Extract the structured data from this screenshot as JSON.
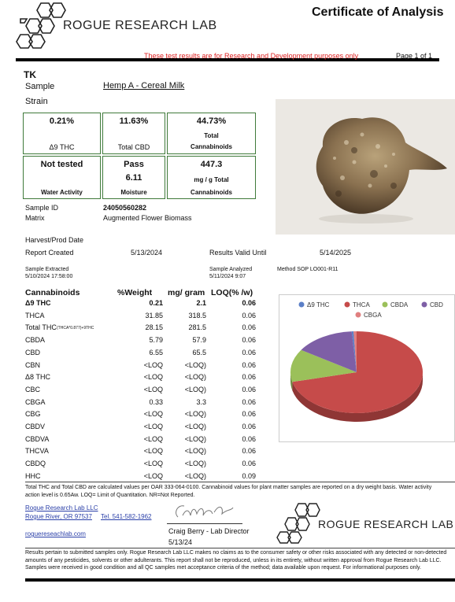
{
  "header": {
    "lab_name": "ROGUE RESEARCH LAB",
    "doc_title": "Certificate of Analysis",
    "disclaimer": "These test results are for Research and Development purposes only",
    "page": "Page 1 of 1"
  },
  "client": "TK",
  "sample": {
    "label": "Sample",
    "value": "Hemp A - Cereal Milk"
  },
  "strain": {
    "label": "Strain"
  },
  "summary_boxes": [
    {
      "value": "0.21%",
      "label": "Δ9 THC"
    },
    {
      "value": "11.63%",
      "label": "Total CBD"
    },
    {
      "value": "44.73%",
      "label_line1": "Total",
      "label_line2": "Cannabinoids"
    },
    {
      "value": "Not tested",
      "label": "Water Activity"
    },
    {
      "value": "Pass",
      "value2": "6.11",
      "label": "Moisture"
    },
    {
      "value": "447.3",
      "label_line1": "mg / g Total",
      "label_line2": "Cannabinoids"
    }
  ],
  "info": {
    "sample_id_label": "Sample ID",
    "sample_id": "24050560282",
    "matrix_label": "Matrix",
    "matrix": "Augmented Flower Biomass",
    "harvest_label": "Harvest/Prod Date",
    "report_created_label": "Report Created",
    "report_created": "5/13/2024",
    "results_valid_label": "Results Valid Until",
    "results_valid": "5/14/2025",
    "extracted_label": "Sample Extracted",
    "extracted": "5/10/2024 17:58:00",
    "analyzed_label": "Sample Analyzed",
    "analyzed": "5/11/2024 9:07",
    "method": "Method SOP LO001-R11"
  },
  "table": {
    "headers": [
      "Cannabinoids",
      "%Weight",
      "mg/ gram",
      "LOQ(% /w)"
    ],
    "rows": [
      {
        "name": "Δ9 THC",
        "weight": "0.21",
        "mg": "2.1",
        "loq": "0.06",
        "bold": true
      },
      {
        "name": "THCA",
        "weight": "31.85",
        "mg": "318.5",
        "loq": "0.06"
      },
      {
        "name": "Total THC",
        "note": "(THCA*0.877)+9THC",
        "weight": "28.15",
        "mg": "281.5",
        "loq": "0.06"
      },
      {
        "name": "CBDA",
        "weight": "5.79",
        "mg": "57.9",
        "loq": "0.06"
      },
      {
        "name": "CBD",
        "weight": "6.55",
        "mg": "65.5",
        "loq": "0.06"
      },
      {
        "name": "CBN",
        "weight": "<LOQ",
        "mg": "<LOQ)",
        "loq": "0.06"
      },
      {
        "name": "Δ8 THC",
        "weight": "<LOQ",
        "mg": "<LOQ)",
        "loq": "0.06"
      },
      {
        "name": "CBC",
        "weight": "<LOQ",
        "mg": "<LOQ)",
        "loq": "0.06"
      },
      {
        "name": "CBGA",
        "weight": "0.33",
        "mg": "3.3",
        "loq": "0.06"
      },
      {
        "name": "CBG",
        "weight": "<LOQ",
        "mg": "<LOQ)",
        "loq": "0.06"
      },
      {
        "name": "CBDV",
        "weight": "<LOQ",
        "mg": "<LOQ)",
        "loq": "0.06"
      },
      {
        "name": "CBDVA",
        "weight": "<LOQ",
        "mg": "<LOQ)",
        "loq": "0.06"
      },
      {
        "name": "THCVA",
        "weight": "<LOQ",
        "mg": "<LOQ)",
        "loq": "0.06"
      },
      {
        "name": "CBDQ",
        "weight": "<LOQ",
        "mg": "<LOQ)",
        "loq": "0.06"
      },
      {
        "name": "HHC",
        "weight": "<LOQ",
        "mg": "<LOQ)",
        "loq": "0.09"
      }
    ]
  },
  "chart_data": {
    "type": "pie",
    "title": "",
    "legend_position": "top",
    "slices": [
      {
        "name": "Δ9 THC",
        "value": 0.21,
        "color": "#5b7fc7"
      },
      {
        "name": "THCA",
        "value": 31.85,
        "color": "#c64b4a"
      },
      {
        "name": "CBDA",
        "value": 5.79,
        "color": "#9bc05a"
      },
      {
        "name": "CBD",
        "value": 6.55,
        "color": "#7e5fa6"
      },
      {
        "name": "CBGA",
        "value": 0.33,
        "color": "#e08080"
      }
    ]
  },
  "footnote": "Total THC and Total CBD are calculated values per OAR 333-064-0100.  Cannabinoid values for plant matter samples are reported on a dry weight basis. Water activity action level is 0.65Aw. LOQ= Limit of Quantitation. NR=Not Reported.",
  "lab_info": {
    "name": "Rogue Research Lab LLC",
    "address": "Rogue River, OR 97537",
    "phone": "Tel.  541-582-1962",
    "website": "roguereseachlab.com"
  },
  "signature": {
    "signer": "Craig Berry - Lab Director",
    "date": "5/13/24"
  },
  "disclaimer_footer": "Results pertain to submitted samples only. Rogue Research Lab LLC makes no claims as to the consumer safety or other risks associated with any detected or non-detected amounts of any pesticides, solvents or other adulterants. This report shall not be reproduced, unless in its entirety, without written approval from Rogue Research Lab LLC. Samples were received in good condition and all QC samples met acceptance criteria of the method; data available upon request. For informational purposes only.",
  "colors": {
    "accent_green": "#3f7a3a",
    "disclaimer_red": "#d22",
    "link_blue": "#2a3fa8"
  }
}
